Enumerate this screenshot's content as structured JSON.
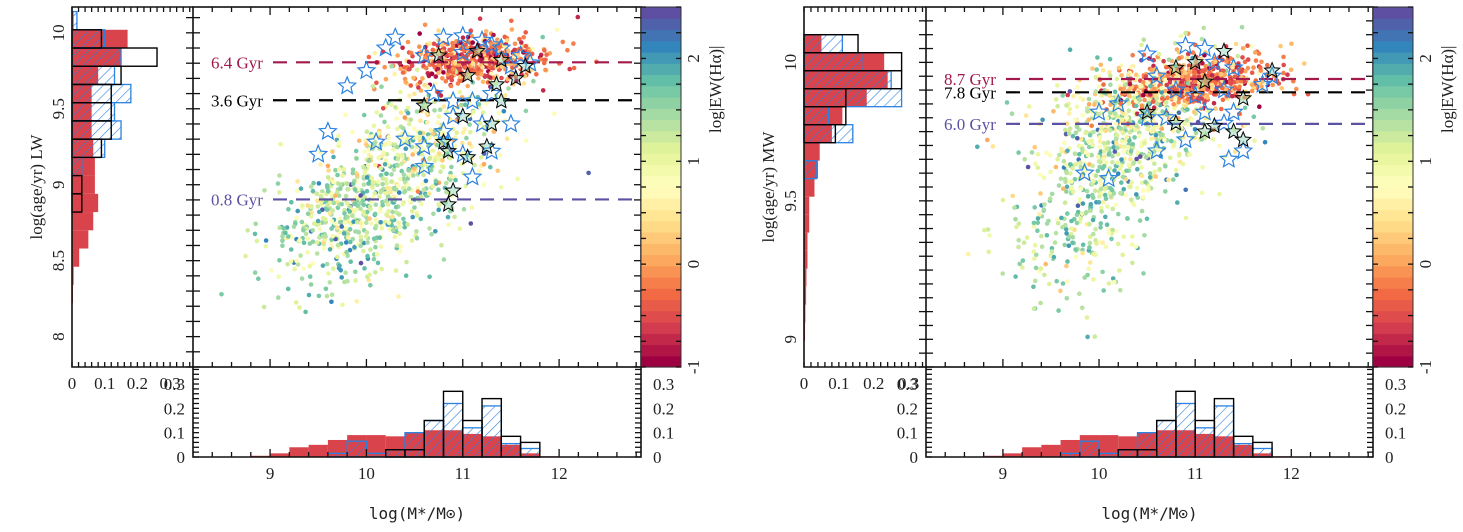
{
  "figure": {
    "colorbar_label": "log|EW(Hα)|",
    "colorbar_ticks": [
      "2",
      "1",
      "0",
      "-1"
    ],
    "colorbar_range": [
      -1,
      2.5
    ],
    "colormap": [
      "#9e0142",
      "#d53e4f",
      "#f46d43",
      "#fdae61",
      "#fee08b",
      "#ffffbf",
      "#e6f598",
      "#abdda4",
      "#66c2a5",
      "#3288bd",
      "#5e4fa2"
    ],
    "colors": {
      "hist_fill": "#d9434b",
      "hist_hatch": "#2b82e0",
      "hist_outline": "#000000",
      "star_blue": "#2b82e0",
      "star_black": "#000000"
    }
  },
  "chart_data": [
    {
      "panel": "left",
      "type": "scatter",
      "title": "",
      "xlabel": "log(M*/M⊙)",
      "ylabel": "log(age/yr) LW",
      "xlim": [
        8.2,
        12.85
      ],
      "ylim": [
        7.8,
        10.17
      ],
      "xticks": [
        "9",
        "10",
        "11",
        "12"
      ],
      "xtick_values": [
        9,
        10,
        11,
        12
      ],
      "yticks": [
        "10",
        "9.5",
        "9",
        "8.5",
        "8"
      ],
      "ytick_values": [
        10,
        9.5,
        9,
        8.5,
        8
      ],
      "reference_lines": [
        {
          "label": "6.4 Gyr",
          "y": 9.806,
          "color": "#a3194e",
          "dash": "long"
        },
        {
          "label": "3.6 Gyr",
          "y": 9.556,
          "color": "#000000",
          "dash": "long"
        },
        {
          "label": "0.8 Gyr",
          "y": 8.903,
          "color": "#5c52a3",
          "dash": "long"
        }
      ],
      "scatter_populations": [
        {
          "name": "star-forming",
          "n": 650,
          "x_mean": 10.0,
          "x_sd": 0.5,
          "y_mean": 8.85,
          "y_sd": 0.22,
          "slope": 0.25,
          "c_mean": 1.4,
          "c_sd": 0.45
        },
        {
          "name": "intermediate",
          "n": 280,
          "x_mean": 10.6,
          "x_sd": 0.45,
          "y_mean": 9.3,
          "y_sd": 0.2,
          "slope": 0.2,
          "c_mean": 0.9,
          "c_sd": 0.5
        },
        {
          "name": "passive",
          "n": 520,
          "x_mean": 11.1,
          "x_sd": 0.38,
          "y_mean": 9.82,
          "y_sd": 0.08,
          "slope": 0.05,
          "c_mean": -0.3,
          "c_sd": 0.45
        }
      ],
      "stars_blue": [
        [
          10.3,
          9.97
        ],
        [
          10.8,
          9.97
        ],
        [
          11.0,
          9.98
        ],
        [
          11.2,
          9.95
        ],
        [
          11.3,
          9.92
        ],
        [
          11.4,
          9.9
        ],
        [
          10.6,
          9.85
        ],
        [
          11.0,
          9.87
        ],
        [
          11.6,
          9.85
        ],
        [
          11.7,
          9.8
        ],
        [
          11.5,
          9.78
        ],
        [
          10.2,
          9.9
        ],
        [
          10.0,
          9.75
        ],
        [
          9.8,
          9.65
        ],
        [
          10.7,
          9.6
        ],
        [
          10.9,
          9.55
        ],
        [
          11.1,
          9.55
        ],
        [
          11.3,
          9.6
        ],
        [
          10.9,
          9.45
        ],
        [
          11.2,
          9.4
        ],
        [
          10.8,
          9.35
        ],
        [
          11.5,
          9.4
        ],
        [
          10.4,
          9.3
        ],
        [
          10.6,
          9.25
        ],
        [
          11.0,
          9.2
        ],
        [
          11.3,
          9.22
        ],
        [
          9.6,
          9.35
        ],
        [
          10.1,
          9.28
        ],
        [
          9.5,
          9.2
        ],
        [
          11.1,
          9.05
        ],
        [
          10.6,
          9.12
        ],
        [
          10.85,
          9.28
        ]
      ],
      "stars_black": [
        [
          10.75,
          9.85
        ],
        [
          11.15,
          9.88
        ],
        [
          11.4,
          9.82
        ],
        [
          11.65,
          9.78
        ],
        [
          11.05,
          9.72
        ],
        [
          11.35,
          9.66
        ],
        [
          10.6,
          9.52
        ],
        [
          11.4,
          9.55
        ],
        [
          11.0,
          9.45
        ],
        [
          11.3,
          9.4
        ],
        [
          10.8,
          9.28
        ],
        [
          11.25,
          9.25
        ],
        [
          10.85,
          9.22
        ],
        [
          11.05,
          9.18
        ],
        [
          10.9,
          8.96
        ],
        [
          10.85,
          8.87
        ],
        [
          11.55,
          9.7
        ]
      ],
      "hist_y": {
        "axis_ticks": [
          "0",
          "0.1",
          "0.2",
          "0.3"
        ],
        "xlim": [
          0,
          0.37
        ],
        "bin_edges": [
          10.14,
          10.02,
          9.9,
          9.78,
          9.66,
          9.54,
          9.42,
          9.3,
          9.18,
          9.06,
          8.94,
          8.82,
          8.7,
          8.58,
          8.46,
          8.34,
          8.22
        ],
        "all": [
          0.005,
          0.17,
          0.15,
          0.08,
          0.06,
          0.06,
          0.06,
          0.065,
          0.07,
          0.07,
          0.08,
          0.065,
          0.05,
          0.022,
          0.005,
          0.003
        ],
        "blue": [
          0.015,
          0.1,
          0.15,
          0.13,
          0.18,
          0.13,
          0.15,
          0.1,
          0.03,
          0,
          0,
          0,
          0,
          0,
          0,
          0
        ],
        "black": [
          0,
          0.09,
          0.26,
          0.15,
          0.12,
          0.12,
          0.12,
          0.09,
          0,
          0.03,
          0.03,
          0,
          0,
          0,
          0,
          0
        ]
      },
      "hist_x": {
        "axis_ticks": [
          "0",
          "0.1",
          "0.2",
          "0.3"
        ],
        "ylim": [
          0,
          0.37
        ],
        "bin_edges": [
          8.8,
          9.0,
          9.2,
          9.4,
          9.6,
          9.8,
          10.0,
          10.2,
          10.4,
          10.6,
          10.8,
          11.0,
          11.2,
          11.4,
          11.6,
          11.8,
          12.0
        ],
        "all": [
          0.005,
          0.015,
          0.04,
          0.05,
          0.07,
          0.09,
          0.09,
          0.085,
          0.1,
          0.11,
          0.11,
          0.095,
          0.085,
          0.05,
          0.015,
          0.003
        ],
        "blue": [
          0,
          0,
          0,
          0,
          0.015,
          0.065,
          0.015,
          0.03,
          0.1,
          0.15,
          0.22,
          0.12,
          0.21,
          0.055,
          0.035,
          0
        ],
        "black": [
          0,
          0,
          0,
          0,
          0,
          0,
          0,
          0.03,
          0.03,
          0.15,
          0.27,
          0.15,
          0.24,
          0.085,
          0.06,
          0
        ]
      }
    },
    {
      "panel": "right",
      "type": "scatter",
      "title": "",
      "xlabel": "log(M*/M⊙)",
      "ylabel": "log(age/yr) MW",
      "xlim": [
        8.2,
        12.85
      ],
      "ylim": [
        8.9,
        10.2
      ],
      "xticks": [
        "9",
        "10",
        "11",
        "12"
      ],
      "xtick_values": [
        9,
        10,
        11,
        12
      ],
      "yticks": [
        "10",
        "9.5",
        "9"
      ],
      "ytick_values": [
        10,
        9.5,
        9
      ],
      "reference_lines": [
        {
          "label": "8.7 Gyr",
          "y": 9.94,
          "color": "#a3194e",
          "dash": "long"
        },
        {
          "label": "7.8 Gyr",
          "y": 9.892,
          "color": "#000000",
          "dash": "long"
        },
        {
          "label": "6.0 Gyr",
          "y": 9.778,
          "color": "#5c52a3",
          "dash": "long"
        }
      ],
      "scatter_populations": [
        {
          "name": "star-forming",
          "n": 520,
          "x_mean": 10.0,
          "x_sd": 0.45,
          "y_mean": 9.55,
          "y_sd": 0.18,
          "slope": 0.2,
          "c_mean": 1.35,
          "c_sd": 0.45
        },
        {
          "name": "intermediate",
          "n": 380,
          "x_mean": 10.4,
          "x_sd": 0.5,
          "y_mean": 9.8,
          "y_sd": 0.1,
          "slope": 0.05,
          "c_mean": 1.0,
          "c_sd": 0.6
        },
        {
          "name": "passive",
          "n": 550,
          "x_mean": 11.0,
          "x_sd": 0.4,
          "y_mean": 9.93,
          "y_sd": 0.05,
          "slope": 0.03,
          "c_mean": -0.2,
          "c_sd": 0.45
        }
      ],
      "stars_blue": [
        [
          10.5,
          10.03
        ],
        [
          10.9,
          10.06
        ],
        [
          11.1,
          10.05
        ],
        [
          11.2,
          10.0
        ],
        [
          11.4,
          9.98
        ],
        [
          11.7,
          9.92
        ],
        [
          11.8,
          9.95
        ],
        [
          10.6,
          9.95
        ],
        [
          10.8,
          9.9
        ],
        [
          11.0,
          9.88
        ],
        [
          11.3,
          9.9
        ],
        [
          10.2,
          9.85
        ],
        [
          10.0,
          9.82
        ],
        [
          10.5,
          9.8
        ],
        [
          10.7,
          9.8
        ],
        [
          11.1,
          9.82
        ],
        [
          11.4,
          9.82
        ],
        [
          11.3,
          9.78
        ],
        [
          10.9,
          9.72
        ],
        [
          10.6,
          9.68
        ],
        [
          11.5,
          9.68
        ],
        [
          11.35,
          9.65
        ],
        [
          9.85,
          9.6
        ],
        [
          10.1,
          9.58
        ]
      ],
      "stars_black": [
        [
          11.3,
          10.04
        ],
        [
          11.8,
          9.97
        ],
        [
          10.8,
          9.98
        ],
        [
          11.0,
          10.0
        ],
        [
          11.1,
          9.93
        ],
        [
          11.5,
          9.87
        ],
        [
          10.5,
          9.82
        ],
        [
          10.8,
          9.78
        ],
        [
          11.1,
          9.75
        ],
        [
          11.4,
          9.75
        ],
        [
          11.5,
          9.72
        ],
        [
          11.2,
          9.77
        ]
      ],
      "hist_y": {
        "axis_ticks": [
          "0",
          "0.1",
          "0.2",
          "0.3"
        ],
        "xlim": [
          0,
          0.35
        ],
        "bin_edges": [
          10.1,
          10.035,
          9.97,
          9.905,
          9.84,
          9.775,
          9.71,
          9.645,
          9.58,
          9.515,
          9.45,
          9.385,
          9.32,
          9.255,
          9.19,
          9.125,
          9.06,
          8.995
        ],
        "all": [
          0.05,
          0.23,
          0.24,
          0.18,
          0.11,
          0.08,
          0.045,
          0.04,
          0.03,
          0.015,
          0.015,
          0.01,
          0.01,
          0.007,
          0.006,
          0.004,
          0.003
        ],
        "blue": [
          0.11,
          0.17,
          0.25,
          0.28,
          0.07,
          0.14,
          0,
          0.035,
          0,
          0,
          0,
          0,
          0,
          0,
          0,
          0,
          0
        ],
        "black": [
          0.155,
          0.28,
          0.28,
          0.12,
          0.12,
          0.09,
          0,
          0,
          0,
          0,
          0,
          0,
          0,
          0,
          0,
          0,
          0
        ]
      },
      "hist_x": {
        "axis_ticks": [
          "0",
          "0.1",
          "0.2",
          "0.3"
        ],
        "ylim": [
          0,
          0.37
        ],
        "bin_edges": [
          8.8,
          9.0,
          9.2,
          9.4,
          9.6,
          9.8,
          10.0,
          10.2,
          10.4,
          10.6,
          10.8,
          11.0,
          11.2,
          11.4,
          11.6,
          11.8,
          12.0
        ],
        "all": [
          0.005,
          0.015,
          0.04,
          0.05,
          0.07,
          0.09,
          0.09,
          0.085,
          0.1,
          0.11,
          0.11,
          0.095,
          0.085,
          0.05,
          0.015,
          0.003
        ],
        "blue": [
          0,
          0,
          0,
          0,
          0.015,
          0.065,
          0.015,
          0.03,
          0.1,
          0.15,
          0.22,
          0.12,
          0.21,
          0.055,
          0.035,
          0
        ],
        "black": [
          0,
          0,
          0,
          0,
          0,
          0,
          0,
          0.03,
          0.03,
          0.15,
          0.27,
          0.15,
          0.24,
          0.085,
          0.06,
          0
        ]
      }
    }
  ]
}
